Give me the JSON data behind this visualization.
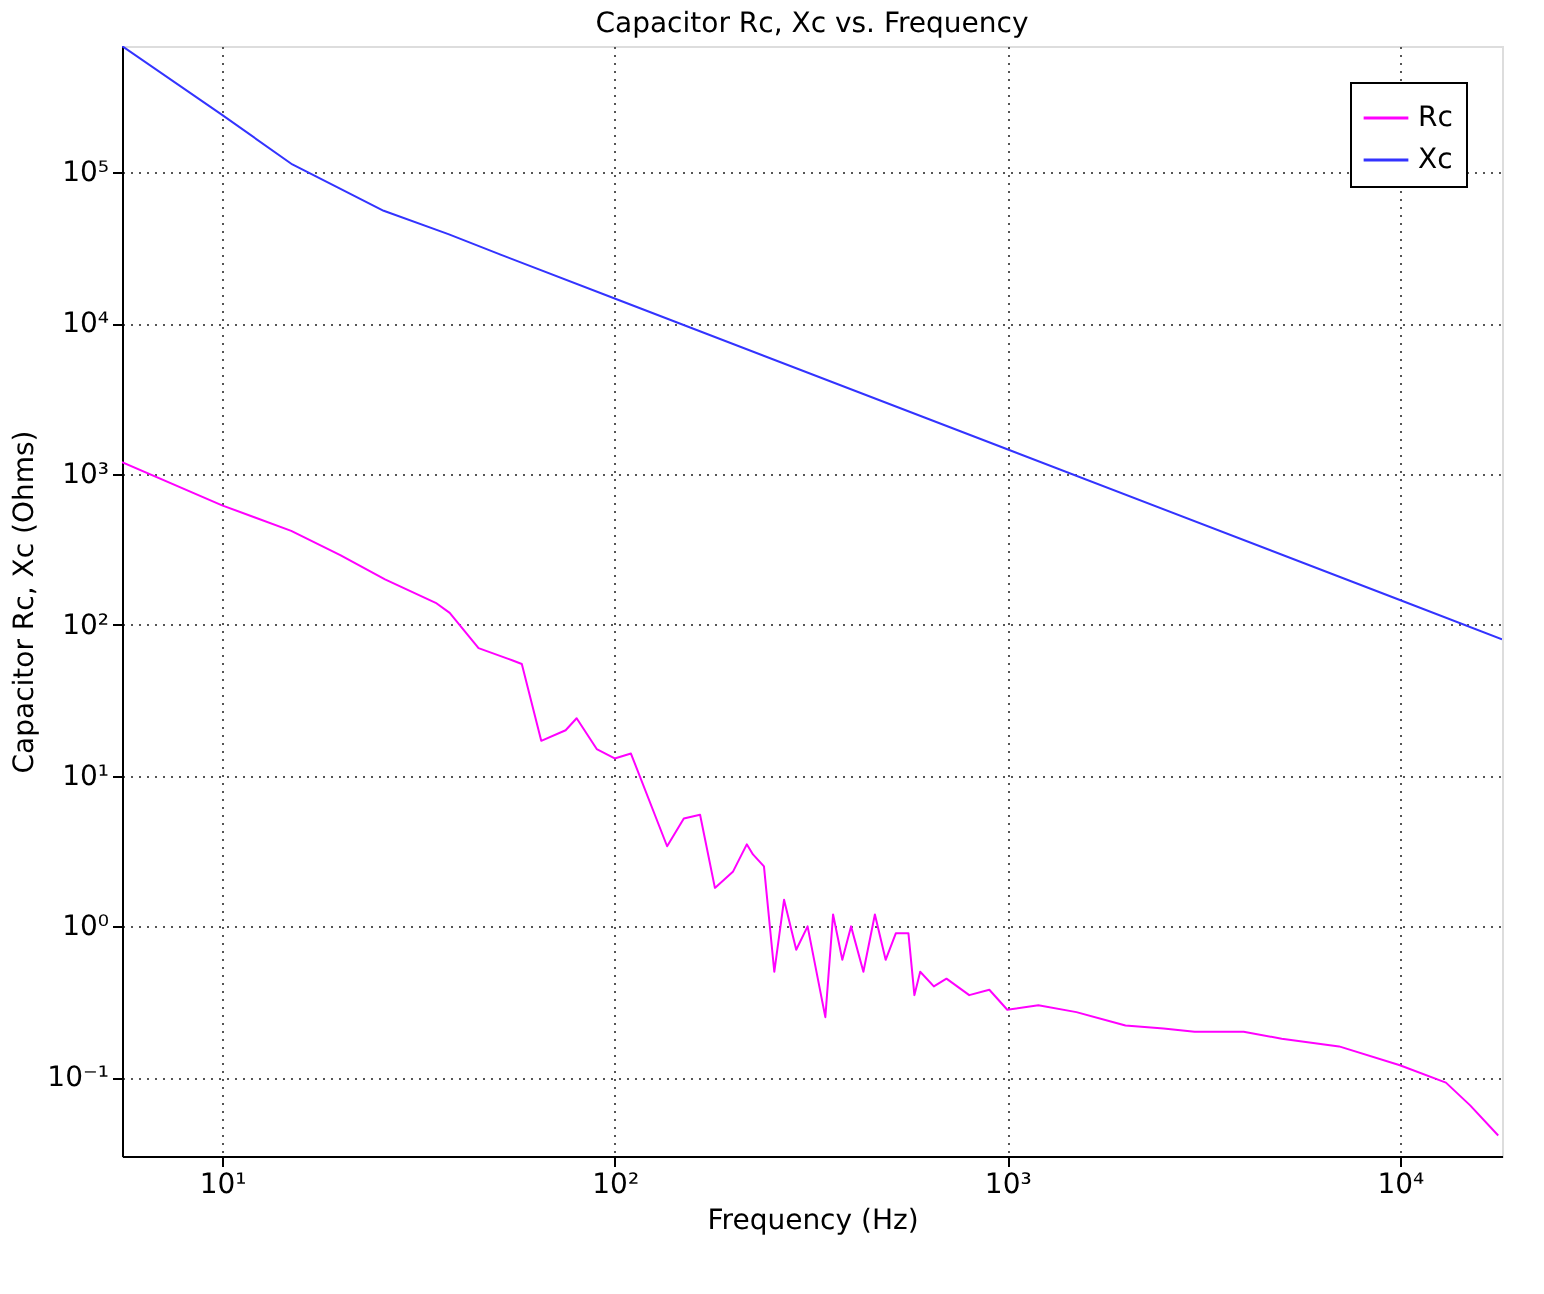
{
  "chart_data": {
    "type": "line",
    "title": "Capacitor Rc, Xc vs. Frequency",
    "xlabel": "Frequency (Hz)",
    "ylabel": "Capacitor Rc, Xc (Ohms)",
    "log": "xy",
    "grid": true,
    "legend": "top right",
    "line_style": "solid",
    "marker": "none",
    "xlim": [
      5.56,
      18200
    ],
    "ylim": [
      0.03,
      690000
    ],
    "xticks": [
      {
        "value": 10,
        "label": "10¹"
      },
      {
        "value": 100,
        "label": "10²"
      },
      {
        "value": 1000,
        "label": "10³"
      },
      {
        "value": 10000,
        "label": "10⁴"
      }
    ],
    "yticks": [
      {
        "value": 0.1,
        "label": "10⁻¹"
      },
      {
        "value": 1,
        "label": "10⁰"
      },
      {
        "value": 10,
        "label": "10¹"
      },
      {
        "value": 100,
        "label": "10²"
      },
      {
        "value": 1000,
        "label": "10³"
      },
      {
        "value": 10000,
        "label": "10⁴"
      },
      {
        "value": 100000,
        "label": "10⁵"
      }
    ],
    "series": [
      {
        "name": "Rc",
        "color": "#ff00ff",
        "x": [
          5.56,
          10,
          15,
          20,
          26,
          35,
          38,
          45,
          55,
          58,
          65,
          75,
          80,
          90,
          100,
          110,
          136,
          150,
          165,
          180,
          200,
          217,
          225,
          240,
          255,
          270,
          290,
          310,
          344,
          360,
          380,
          400,
          430,
          460,
          490,
          520,
          560,
          580,
          600,
          650,
          700,
          800,
          900,
          1000,
          1200,
          1500,
          2000,
          2500,
          3000,
          4000,
          5000,
          7000,
          10000,
          13100,
          15100,
          17800
        ],
        "values": [
          1200,
          620,
          420,
          290,
          200,
          140,
          120,
          70,
          58,
          55,
          17,
          20,
          24,
          15,
          13,
          14,
          3.4,
          5.2,
          5.5,
          1.8,
          2.3,
          3.5,
          3.0,
          2.5,
          0.5,
          1.5,
          0.7,
          1.0,
          0.25,
          1.2,
          0.6,
          1.0,
          0.5,
          1.2,
          0.6,
          0.9,
          0.9,
          0.35,
          0.5,
          0.4,
          0.45,
          0.35,
          0.38,
          0.28,
          0.3,
          0.27,
          0.22,
          0.21,
          0.2,
          0.2,
          0.18,
          0.16,
          0.12,
          0.092,
          0.065,
          0.041
        ]
      },
      {
        "name": "Xc",
        "color": "#3333ff",
        "x": [
          5.56,
          10,
          15.1,
          19.8,
          25.8,
          37.7,
          51.4,
          100,
          1000,
          10000,
          18200
        ],
        "values": [
          690000,
          241000,
          113000,
          79000,
          55700,
          39000,
          28400,
          14600,
          1460,
          146,
          80
        ]
      }
    ]
  }
}
